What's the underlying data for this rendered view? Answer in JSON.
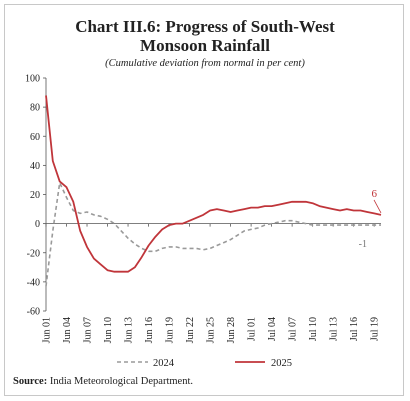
{
  "title_line1": "Chart III.6: Progress of South-West",
  "title_line2": "Monsoon Rainfall",
  "subtitle": "(Cumulative deviation from normal in per cent)",
  "source_label": "Source:",
  "source_text": "India Meteorological Department.",
  "chart_data": {
    "type": "line",
    "title": "Chart III.6: Progress of South-West Monsoon Rainfall",
    "subtitle": "(Cumulative deviation from normal in per cent)",
    "xlabel": "",
    "ylabel": "",
    "ylim": [
      -60,
      100
    ],
    "yticks": [
      -60,
      -40,
      -20,
      0,
      20,
      40,
      60,
      80,
      100
    ],
    "x_start": "Jun 01",
    "x_tick_labels": [
      "Jun 01",
      "Jun 04",
      "Jun 07",
      "Jun 10",
      "Jun 13",
      "Jun 16",
      "Jun 19",
      "Jun 22",
      "Jun 25",
      "Jun 28",
      "Jul 01",
      "Jul 04",
      "Jul 07",
      "Jul 10",
      "Jul 13",
      "Jul 16",
      "Jul 19"
    ],
    "grid": false,
    "legend_position": "bottom",
    "series": [
      {
        "name": "2024",
        "color": "#9a9a9a",
        "dash": "dashed",
        "end_label": "-1",
        "values": [
          -43,
          -5,
          28,
          18,
          9,
          7,
          8,
          6,
          5,
          3,
          0,
          -5,
          -10,
          -14,
          -17,
          -19,
          -19,
          -17,
          -16,
          -16,
          -17,
          -17,
          -17,
          -18,
          -17,
          -15,
          -13,
          -11,
          -8,
          -5,
          -4,
          -3,
          -1,
          0,
          1,
          2,
          2,
          1,
          0,
          -1,
          -1,
          -1,
          -1,
          -1,
          -1,
          -1,
          -1,
          -1,
          -1,
          -1
        ]
      },
      {
        "name": "2025",
        "color": "#c0353a",
        "dash": "solid",
        "end_label": "6",
        "values": [
          88,
          43,
          29,
          25,
          15,
          -5,
          -16,
          -24,
          -28,
          -32,
          -33,
          -33,
          -33,
          -30,
          -23,
          -15,
          -9,
          -4,
          -1,
          0,
          0,
          2,
          4,
          6,
          9,
          10,
          9,
          8,
          9,
          10,
          11,
          11,
          12,
          12,
          13,
          14,
          15,
          15,
          15,
          14,
          12,
          11,
          10,
          9,
          10,
          9,
          9,
          8,
          7,
          6
        ]
      }
    ]
  }
}
